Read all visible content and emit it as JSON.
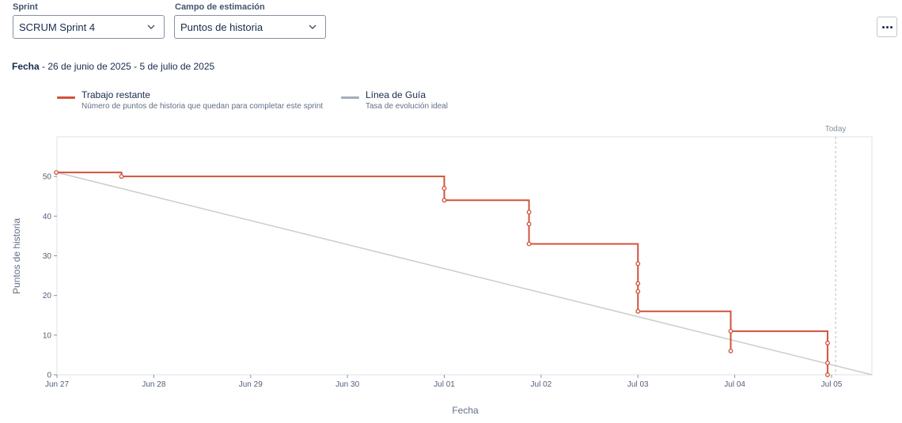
{
  "controls": {
    "sprint_label": "Sprint",
    "sprint_value": "SCRUM Sprint 4",
    "estimation_label": "Campo de estimación",
    "estimation_value": "Puntos de historia"
  },
  "date_range": {
    "label": "Fecha",
    "separator": " - ",
    "value": "26 de junio de 2025 - 5 de julio de 2025"
  },
  "legend": [
    {
      "title": "Trabajo restante",
      "description": "Número de puntos de historia que quedan para completar este sprint",
      "color": "#d0533a"
    },
    {
      "title": "Línea de Guía",
      "description": "Tasa de evolución ideal",
      "color": "#a5adba"
    }
  ],
  "chart_data": {
    "type": "line",
    "xlabel": "Fecha",
    "ylabel": "Puntos de historia",
    "x_ticks": [
      "Jun 27",
      "Jun 28",
      "Jun 29",
      "Jun 30",
      "Jul 01",
      "Jul 02",
      "Jul 03",
      "Jul 04",
      "Jul 05"
    ],
    "x_range": [
      "2025-06-27T00:00",
      "2025-07-05T10:00"
    ],
    "y_ticks": [
      0,
      10,
      20,
      30,
      40,
      50
    ],
    "ylim": [
      0,
      60
    ],
    "today_marker": {
      "label": "Today",
      "x": "2025-07-05T01:00"
    },
    "guide_line": {
      "name": "Línea de Guía",
      "color": "#cccccc",
      "points": [
        {
          "x": "2025-06-27T00:00",
          "y": 51
        },
        {
          "x": "2025-07-05T10:00",
          "y": 0
        }
      ]
    },
    "remaining_work": {
      "name": "Trabajo restante",
      "color": "#d0533a",
      "step": true,
      "points": [
        {
          "x": "2025-06-26T23:50",
          "y": 51
        },
        {
          "x": "2025-06-27T16:00",
          "y": 50
        },
        {
          "x": "2025-07-01T00:00",
          "y": 47
        },
        {
          "x": "2025-07-01T00:00",
          "y": 44
        },
        {
          "x": "2025-07-01T21:00",
          "y": 41
        },
        {
          "x": "2025-07-01T21:00",
          "y": 38
        },
        {
          "x": "2025-07-01T21:00",
          "y": 33
        },
        {
          "x": "2025-07-03T00:00",
          "y": 28
        },
        {
          "x": "2025-07-03T00:00",
          "y": 23
        },
        {
          "x": "2025-07-03T00:00",
          "y": 21
        },
        {
          "x": "2025-07-03T00:00",
          "y": 16
        },
        {
          "x": "2025-07-03T23:00",
          "y": 6
        },
        {
          "x": "2025-07-03T23:00",
          "y": 11
        },
        {
          "x": "2025-07-04T23:00",
          "y": 8
        },
        {
          "x": "2025-07-04T23:00",
          "y": 3
        },
        {
          "x": "2025-07-04T23:00",
          "y": 0
        }
      ]
    },
    "grid": false,
    "legend_position": "top-left"
  }
}
